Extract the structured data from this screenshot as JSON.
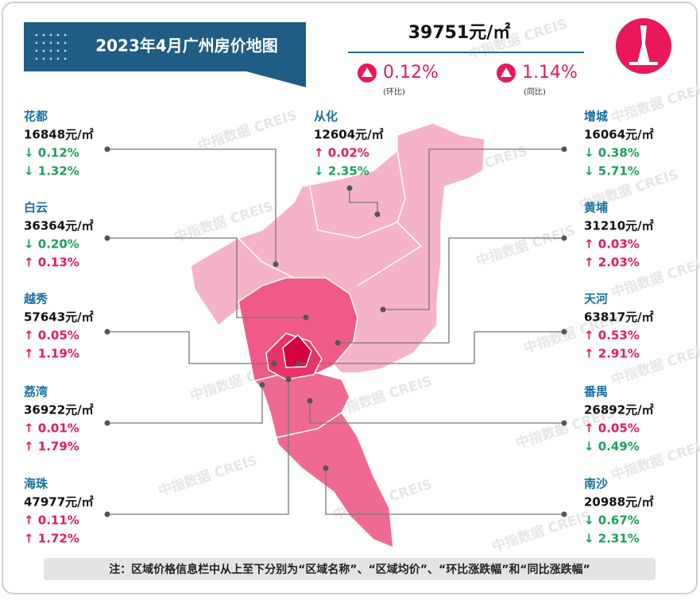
{
  "title": "2023年4月广州房价地图",
  "overall": {
    "price": "39751元/㎡",
    "mom": "0.12%",
    "mom_label": "(环比)",
    "yoy": "1.14%",
    "yoy_label": "(同比)"
  },
  "districts": [
    {
      "name": "花都",
      "price": "16848元/㎡",
      "mom": "↓ 0.12%",
      "yoy": "↓ 1.32%"
    },
    {
      "name": "白云",
      "price": "36364元/㎡",
      "mom": "↓ 0.20%",
      "yoy": "↑ 0.13%"
    },
    {
      "name": "越秀",
      "price": "57643元/㎡",
      "mom": "↑ 0.05%",
      "yoy": "↑ 1.19%"
    },
    {
      "name": "荔湾",
      "price": "36922元/㎡",
      "mom": "↑ 0.01%",
      "yoy": "↑ 1.79%"
    },
    {
      "name": "海珠",
      "price": "47977元/㎡",
      "mom": "↑ 0.11%",
      "yoy": "↑ 1.72%"
    },
    {
      "name": "从化",
      "price": "12604元/㎡",
      "mom": "↑ 0.02%",
      "yoy": "↓ 2.35%"
    },
    {
      "name": "增城",
      "price": "16064元/㎡",
      "mom": "↓ 0.38%",
      "yoy": "↓ 5.71%"
    },
    {
      "name": "黄埔",
      "price": "31210元/㎡",
      "mom": "↑ 0.03%",
      "yoy": "↑ 2.03%"
    },
    {
      "name": "天河",
      "price": "63817元/㎡",
      "mom": "↑ 0.53%",
      "yoy": "↑ 2.91%"
    },
    {
      "name": "番禺",
      "price": "26892元/㎡",
      "mom": "↑ 0.05%",
      "yoy": "↓ 0.49%"
    },
    {
      "name": "南沙",
      "price": "20988元/㎡",
      "mom": "↓ 0.67%",
      "yoy": "↓ 2.31%"
    }
  ],
  "watermark": "中指数据 CREIS",
  "note": "注：区域价格信息栏中从上至下分别为“区域名称”、“区域均价”、“环比涨跌幅”和“同比涨跌幅”"
}
